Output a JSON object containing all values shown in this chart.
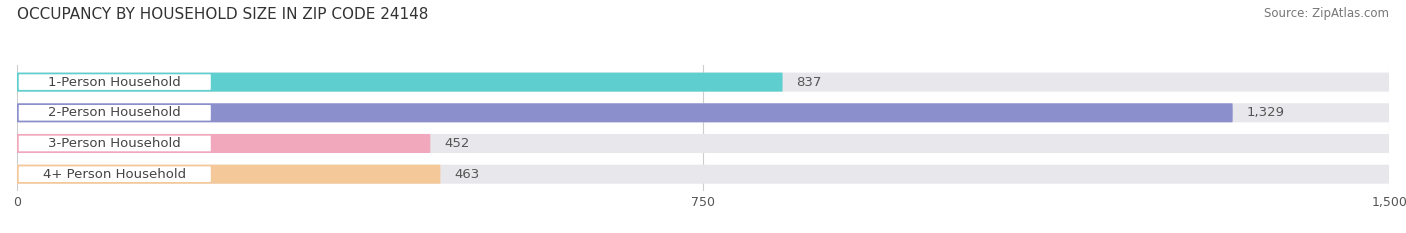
{
  "title": "OCCUPANCY BY HOUSEHOLD SIZE IN ZIP CODE 24148",
  "source": "Source: ZipAtlas.com",
  "categories": [
    "1-Person Household",
    "2-Person Household",
    "3-Person Household",
    "4+ Person Household"
  ],
  "values": [
    837,
    1329,
    452,
    463
  ],
  "bar_colors": [
    "#5ECECE",
    "#8B8FCC",
    "#F2A8BC",
    "#F5C89A"
  ],
  "xlim": [
    0,
    1500
  ],
  "xticks": [
    0,
    750,
    1500
  ],
  "background_color": "#FFFFFF",
  "bar_bg_color": "#E8E8EC",
  "title_fontsize": 11,
  "source_fontsize": 8.5,
  "label_fontsize": 9.5,
  "value_fontsize": 9.5
}
